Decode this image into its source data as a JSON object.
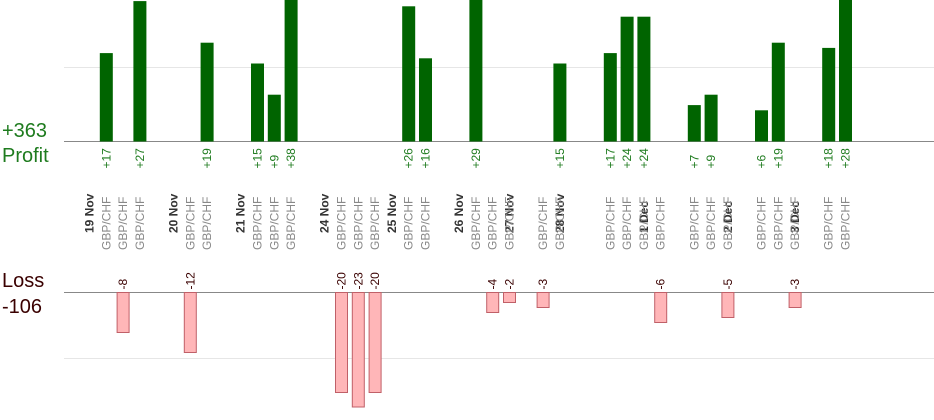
{
  "summary": {
    "profit_total": "+363",
    "profit_label": "Profit",
    "loss_label": "Loss",
    "loss_total": "-106"
  },
  "colors": {
    "profit_bar": "#006400",
    "profit_text": "#1e7b1e",
    "loss_bar": "#ffb6b8",
    "loss_bar_border": "#c06068",
    "loss_text": "#3a0000",
    "date_text": "#333333",
    "pair_text": "#888888",
    "baseline": "#888888",
    "grid": "#e6e6e6"
  },
  "chart_data": {
    "type": "bar",
    "profit_ylim": [
      0,
      45
    ],
    "loss_ylim": [
      -25,
      0
    ],
    "grid": true,
    "dates": [
      {
        "label": "19 Nov",
        "slot": 0
      },
      {
        "label": "20 Nov",
        "slot": 5
      },
      {
        "label": "21 Nov",
        "slot": 9
      },
      {
        "label": "24 Nov",
        "slot": 14
      },
      {
        "label": "25 Nov",
        "slot": 18
      },
      {
        "label": "26 Nov",
        "slot": 22
      },
      {
        "label": "27 Nov",
        "slot": 25
      },
      {
        "label": "28 Nov",
        "slot": 28
      },
      {
        "label": "1 Dec",
        "slot": 33
      },
      {
        "label": "2 Dec",
        "slot": 38
      },
      {
        "label": "3 Dec",
        "slot": 42
      }
    ],
    "trades": [
      {
        "slot": 1,
        "pair": "GBP/CHF",
        "label": "+17",
        "value": 17
      },
      {
        "slot": 2,
        "pair": "GBP/CHF",
        "label": "-8",
        "value": -8
      },
      {
        "slot": 3,
        "pair": "GBP/CHF",
        "label": "+27",
        "value": 27
      },
      {
        "slot": 6,
        "pair": "GBP/CHF",
        "label": "-12",
        "value": -12
      },
      {
        "slot": 7,
        "pair": "GBP/CHF",
        "label": "+19",
        "value": 19
      },
      {
        "slot": 10,
        "pair": "GBP/CHF",
        "label": "+15",
        "value": 15
      },
      {
        "slot": 11,
        "pair": "GBP/CHF",
        "label": "+9",
        "value": 9
      },
      {
        "slot": 12,
        "pair": "GBP/CHF",
        "label": "+38",
        "value": 38
      },
      {
        "slot": 15,
        "pair": "GBP/CHF",
        "label": "-20",
        "value": -20
      },
      {
        "slot": 16,
        "pair": "GBP/CHF",
        "label": "-23",
        "value": -23
      },
      {
        "slot": 17,
        "pair": "GBP/CHF",
        "label": "-20",
        "value": -20
      },
      {
        "slot": 19,
        "pair": "GBP/CHF",
        "label": "+26",
        "value": 26
      },
      {
        "slot": 20,
        "pair": "GBP/CHF",
        "label": "+16",
        "value": 16
      },
      {
        "slot": 23,
        "pair": "GBP/CHF",
        "label": "+29",
        "value": 29
      },
      {
        "slot": 24,
        "pair": "GBP/CHF",
        "label": "-4",
        "value": -4
      },
      {
        "slot": 25,
        "pair": "GBP/CHF",
        "label": "-2",
        "value": -2
      },
      {
        "slot": 27,
        "pair": "GBP/CHF",
        "label": "-3",
        "value": -3
      },
      {
        "slot": 28,
        "pair": "GBP/CHF",
        "label": "+15",
        "value": 15
      },
      {
        "slot": 31,
        "pair": "GBP/CHF",
        "label": "+17",
        "value": 17
      },
      {
        "slot": 32,
        "pair": "GBP/CHF",
        "label": "+24",
        "value": 24
      },
      {
        "slot": 33,
        "pair": "GBP/CHF",
        "label": "+24",
        "value": 24
      },
      {
        "slot": 34,
        "pair": "GBP/CHF",
        "label": "-6",
        "value": -6
      },
      {
        "slot": 36,
        "pair": "GBP/CHF",
        "label": "+7",
        "value": 7
      },
      {
        "slot": 37,
        "pair": "GBP/CHF",
        "label": "+9",
        "value": 9
      },
      {
        "slot": 38,
        "pair": "GBP/CHF",
        "label": "-5",
        "value": -5
      },
      {
        "slot": 40,
        "pair": "GBP/CHF",
        "label": "+6",
        "value": 6
      },
      {
        "slot": 41,
        "pair": "GBP/CHF",
        "label": "+19",
        "value": 19
      },
      {
        "slot": 42,
        "pair": "GBP/CHF",
        "label": "-3",
        "value": -3
      },
      {
        "slot": 44,
        "pair": "GBP/CHF",
        "label": "+18",
        "value": 18
      },
      {
        "slot": 45,
        "pair": "GBP/CHF",
        "label": "+28",
        "value": 28
      }
    ]
  }
}
